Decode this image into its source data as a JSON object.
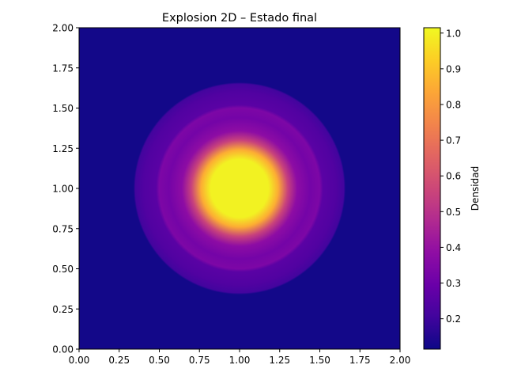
{
  "chart_data": {
    "type": "heatmap",
    "title": "Explosion 2D – Estado final",
    "xlabel": "",
    "ylabel": "",
    "xlim": [
      0,
      2
    ],
    "ylim": [
      0,
      2
    ],
    "x_ticks": [
      "0.00",
      "0.25",
      "0.50",
      "0.75",
      "1.00",
      "1.25",
      "1.50",
      "1.75",
      "2.00"
    ],
    "y_ticks": [
      "0.00",
      "0.25",
      "0.50",
      "0.75",
      "1.00",
      "1.25",
      "1.50",
      "1.75",
      "2.00"
    ],
    "colormap": "plasma",
    "colorbar": {
      "label": "Densidad",
      "range": [
        0.115,
        1.015
      ],
      "ticks": [
        "0.2",
        "0.3",
        "0.4",
        "0.5",
        "0.6",
        "0.7",
        "0.8",
        "0.9",
        "1.0"
      ],
      "tick_values": [
        0.2,
        0.3,
        0.4,
        0.5,
        0.6,
        0.7,
        0.8,
        0.9,
        1.0
      ]
    },
    "field": {
      "center": [
        1.0,
        1.0
      ],
      "background_density": 0.125,
      "radial_profile": [
        {
          "r": 0.0,
          "density": 1.0
        },
        {
          "r": 0.18,
          "density": 1.0
        },
        {
          "r": 0.24,
          "density": 0.85
        },
        {
          "r": 0.3,
          "density": 0.55
        },
        {
          "r": 0.36,
          "density": 0.38
        },
        {
          "r": 0.44,
          "density": 0.32
        },
        {
          "r": 0.5,
          "density": 0.34
        },
        {
          "r": 0.52,
          "density": 0.26
        },
        {
          "r": 0.6,
          "density": 0.24
        },
        {
          "r": 0.65,
          "density": 0.21
        },
        {
          "r": 0.66,
          "density": 0.125
        },
        {
          "r": 2.0,
          "density": 0.125
        }
      ]
    }
  }
}
